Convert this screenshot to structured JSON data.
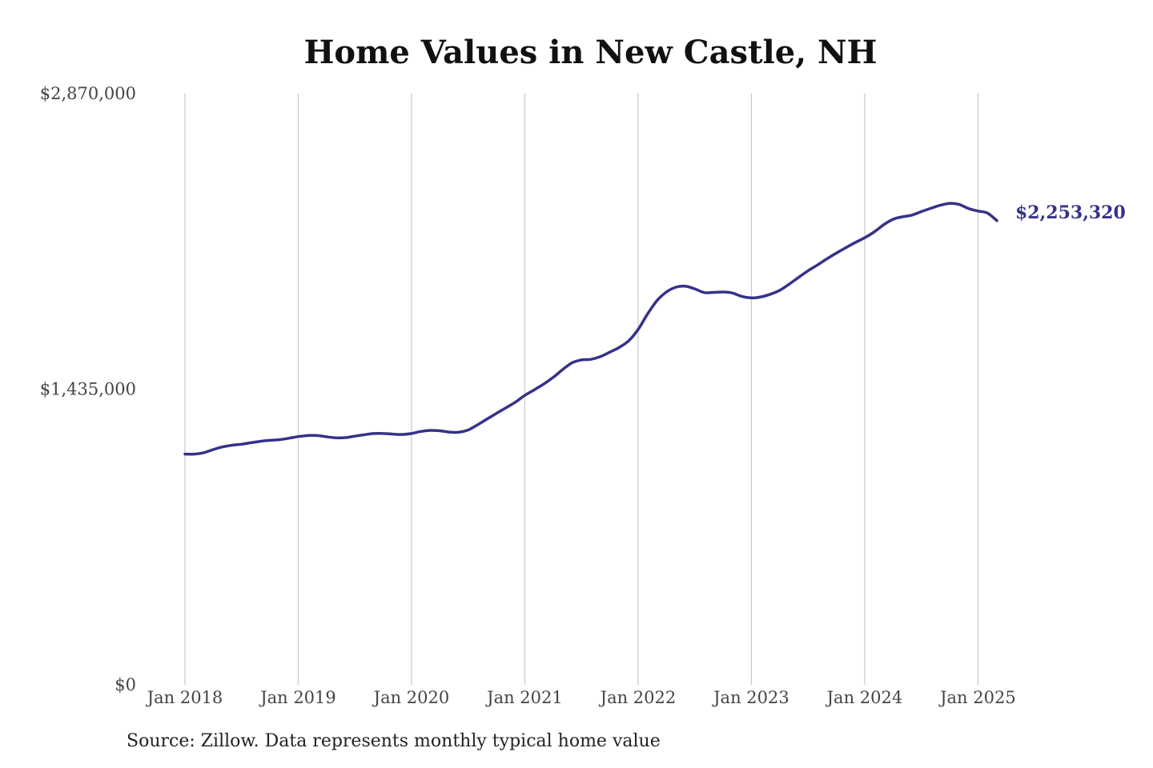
{
  "chart_data": {
    "type": "line",
    "title": "Home Values in New Castle, NH",
    "source": "Source: Zillow. Data represents monthly typical home value",
    "ylim": [
      0,
      2870000
    ],
    "yticks": [
      {
        "value": 0,
        "label": "$0"
      },
      {
        "value": 1435000,
        "label": "$1,435,000"
      },
      {
        "value": 2870000,
        "label": "$2,870,000"
      }
    ],
    "xlim": [
      "2018-01",
      "2025-03"
    ],
    "xticks": [
      {
        "date": "2018-01",
        "label": "Jan 2018"
      },
      {
        "date": "2019-01",
        "label": "Jan 2019"
      },
      {
        "date": "2020-01",
        "label": "Jan 2020"
      },
      {
        "date": "2021-01",
        "label": "Jan 2021"
      },
      {
        "date": "2022-01",
        "label": "Jan 2022"
      },
      {
        "date": "2023-01",
        "label": "Jan 2023"
      },
      {
        "date": "2024-01",
        "label": "Jan 2024"
      },
      {
        "date": "2025-01",
        "label": "Jan 2025"
      }
    ],
    "grid": "vertical",
    "line_color": "#35318a",
    "end_label": "$2,253,320",
    "series": [
      {
        "x": [
          "2018-01",
          "2018-02",
          "2018-03",
          "2018-04",
          "2018-05",
          "2018-06",
          "2018-07",
          "2018-08",
          "2018-09",
          "2018-10",
          "2018-11",
          "2018-12",
          "2019-01",
          "2019-02",
          "2019-03",
          "2019-04",
          "2019-05",
          "2019-06",
          "2019-07",
          "2019-08",
          "2019-09",
          "2019-10",
          "2019-11",
          "2019-12",
          "2020-01",
          "2020-02",
          "2020-03",
          "2020-04",
          "2020-05",
          "2020-06",
          "2020-07",
          "2020-08",
          "2020-09",
          "2020-10",
          "2020-11",
          "2020-12",
          "2021-01",
          "2021-02",
          "2021-03",
          "2021-04",
          "2021-05",
          "2021-06",
          "2021-07",
          "2021-08",
          "2021-09",
          "2021-10",
          "2021-11",
          "2021-12",
          "2022-01",
          "2022-02",
          "2022-03",
          "2022-04",
          "2022-05",
          "2022-06",
          "2022-07",
          "2022-08",
          "2022-09",
          "2022-10",
          "2022-11",
          "2022-12",
          "2023-01",
          "2023-02",
          "2023-03",
          "2023-04",
          "2023-05",
          "2023-06",
          "2023-07",
          "2023-08",
          "2023-09",
          "2023-10",
          "2023-11",
          "2023-12",
          "2024-01",
          "2024-02",
          "2024-03",
          "2024-04",
          "2024-05",
          "2024-06",
          "2024-07",
          "2024-08",
          "2024-09",
          "2024-10",
          "2024-11",
          "2024-12",
          "2025-01",
          "2025-02",
          "2025-03"
        ],
        "y": [
          1120000,
          1120000,
          1127000,
          1142000,
          1155000,
          1163000,
          1168000,
          1175000,
          1182000,
          1187000,
          1190000,
          1197000,
          1205000,
          1210000,
          1210000,
          1204000,
          1199000,
          1200000,
          1207000,
          1214000,
          1220000,
          1220000,
          1217000,
          1215000,
          1220000,
          1230000,
          1235000,
          1233000,
          1227000,
          1226000,
          1237000,
          1262000,
          1290000,
          1318000,
          1345000,
          1372000,
          1405000,
          1432000,
          1460000,
          1492000,
          1530000,
          1563000,
          1577000,
          1580000,
          1593000,
          1615000,
          1638000,
          1670000,
          1725000,
          1800000,
          1865000,
          1907000,
          1930000,
          1935000,
          1922000,
          1904000,
          1905000,
          1907000,
          1902000,
          1885000,
          1878000,
          1883000,
          1896000,
          1915000,
          1945000,
          1978000,
          2010000,
          2038000,
          2068000,
          2096000,
          2122000,
          2147000,
          2170000,
          2198000,
          2233000,
          2260000,
          2272000,
          2280000,
          2297000,
          2313000,
          2328000,
          2337000,
          2332000,
          2312000,
          2300000,
          2290000,
          2253320
        ]
      }
    ]
  }
}
